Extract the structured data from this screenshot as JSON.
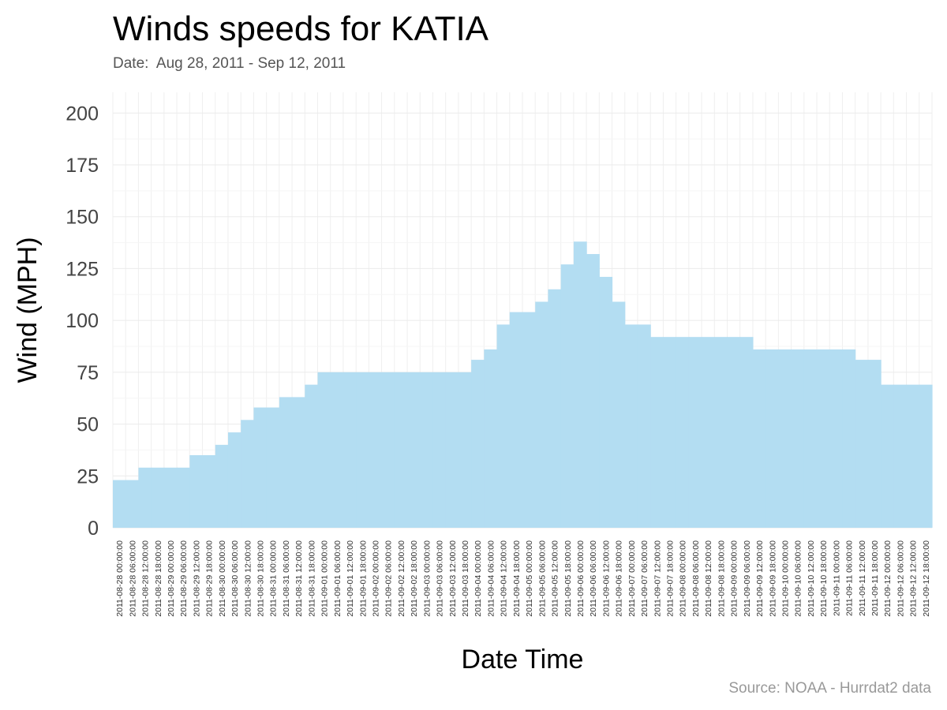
{
  "chart_data": {
    "type": "area",
    "title": "Winds speeds for KATIA",
    "subtitle": "Date:  Aug 28, 2011 - Sep 12, 2011",
    "source": "Source: NOAA - Hurrdat2 data",
    "xlabel": "Date Time",
    "ylabel": "Wind (MPH)",
    "ylim": [
      0,
      210
    ],
    "yticks": [
      0,
      25,
      50,
      75,
      100,
      125,
      150,
      175,
      200
    ],
    "grid": true,
    "fill_color": "#b3ddf2",
    "x": [
      "2011-08-28 00:00:00",
      "2011-08-28 06:00:00",
      "2011-08-28 12:00:00",
      "2011-08-28 18:00:00",
      "2011-08-29 00:00:00",
      "2011-08-29 06:00:00",
      "2011-08-29 12:00:00",
      "2011-08-29 18:00:00",
      "2011-08-30 00:00:00",
      "2011-08-30 06:00:00",
      "2011-08-30 12:00:00",
      "2011-08-30 18:00:00",
      "2011-08-31 00:00:00",
      "2011-08-31 06:00:00",
      "2011-08-31 12:00:00",
      "2011-08-31 18:00:00",
      "2011-09-01 00:00:00",
      "2011-09-01 06:00:00",
      "2011-09-01 12:00:00",
      "2011-09-01 18:00:00",
      "2011-09-02 00:00:00",
      "2011-09-02 06:00:00",
      "2011-09-02 12:00:00",
      "2011-09-02 18:00:00",
      "2011-09-03 00:00:00",
      "2011-09-03 06:00:00",
      "2011-09-03 12:00:00",
      "2011-09-03 18:00:00",
      "2011-09-04 00:00:00",
      "2011-09-04 06:00:00",
      "2011-09-04 12:00:00",
      "2011-09-04 18:00:00",
      "2011-09-05 00:00:00",
      "2011-09-05 06:00:00",
      "2011-09-05 12:00:00",
      "2011-09-05 18:00:00",
      "2011-09-06 00:00:00",
      "2011-09-06 06:00:00",
      "2011-09-06 12:00:00",
      "2011-09-06 18:00:00",
      "2011-09-07 00:00:00",
      "2011-09-07 06:00:00",
      "2011-09-07 12:00:00",
      "2011-09-07 18:00:00",
      "2011-09-08 00:00:00",
      "2011-09-08 06:00:00",
      "2011-09-08 12:00:00",
      "2011-09-08 18:00:00",
      "2011-09-09 00:00:00",
      "2011-09-09 06:00:00",
      "2011-09-09 12:00:00",
      "2011-09-09 18:00:00",
      "2011-09-10 00:00:00",
      "2011-09-10 06:00:00",
      "2011-09-10 12:00:00",
      "2011-09-10 18:00:00",
      "2011-09-11 00:00:00",
      "2011-09-11 06:00:00",
      "2011-09-11 12:00:00",
      "2011-09-11 18:00:00",
      "2011-09-12 00:00:00",
      "2011-09-12 06:00:00",
      "2011-09-12 12:00:00",
      "2011-09-12 18:00:00"
    ],
    "values": [
      23,
      23,
      29,
      29,
      29,
      29,
      35,
      35,
      40,
      46,
      52,
      58,
      58,
      63,
      63,
      69,
      75,
      75,
      75,
      75,
      75,
      75,
      75,
      75,
      75,
      75,
      75,
      75,
      81,
      86,
      98,
      104,
      104,
      109,
      115,
      127,
      138,
      132,
      121,
      109,
      98,
      98,
      92,
      92,
      92,
      92,
      92,
      92,
      92,
      92,
      86,
      86,
      86,
      86,
      86,
      86,
      86,
      86,
      81,
      81,
      69,
      69,
      69,
      69
    ]
  }
}
